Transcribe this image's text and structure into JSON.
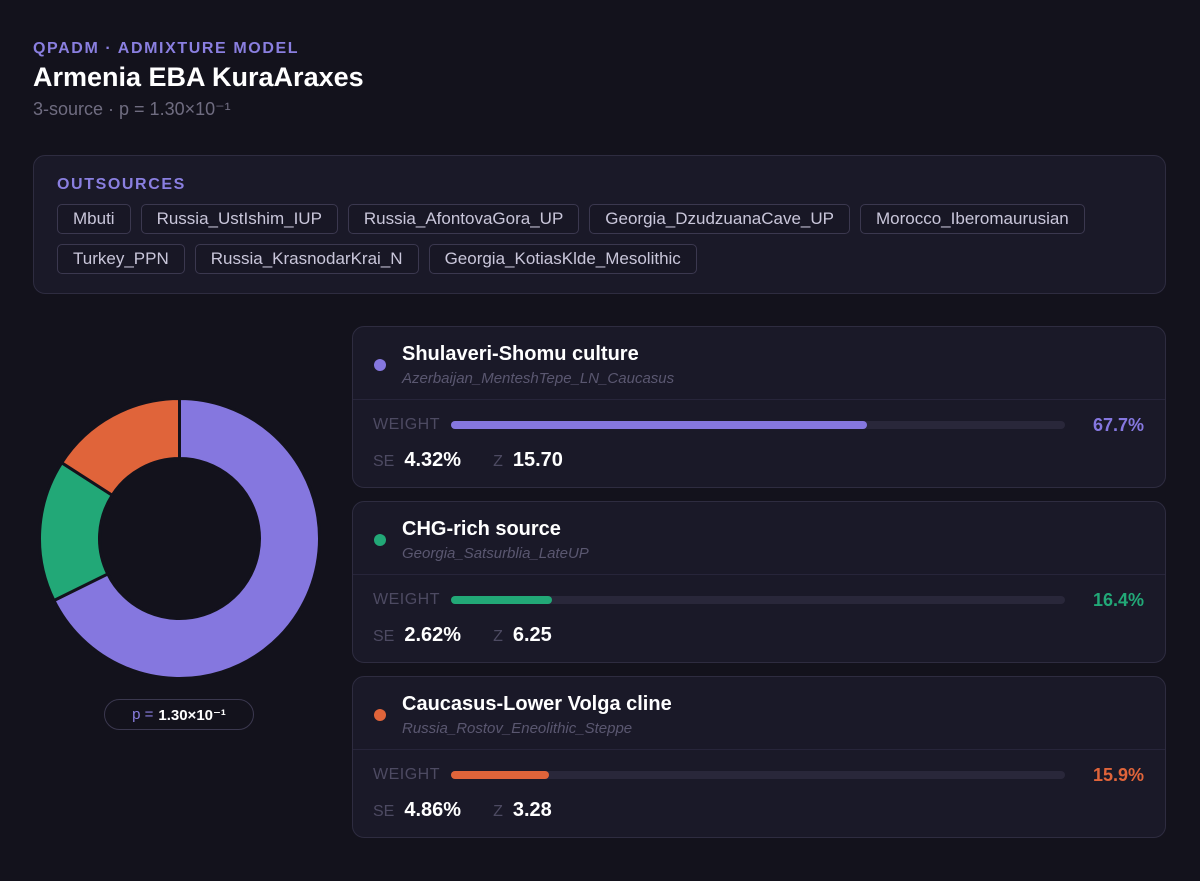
{
  "header": {
    "kicker": "QPADM · ADMIXTURE MODEL",
    "title": "Armenia EBA KuraAraxes",
    "subtitle": "3-source · p = 1.30×10⁻¹"
  },
  "outsources": {
    "label": "OUTSOURCES",
    "items": [
      "Mbuti",
      "Russia_UstIshim_IUP",
      "Russia_AfontovaGora_UP",
      "Georgia_DzudzuanaCave_UP",
      "Morocco_Iberomaurusian",
      "Turkey_PPN",
      "Russia_KrasnodarKrai_N",
      "Georgia_KotiasKlde_Mesolithic"
    ]
  },
  "pvalue_pill": {
    "prefix": "p =",
    "value": "1.30×10⁻¹"
  },
  "labels": {
    "weight": "WEIGHT",
    "se": "SE",
    "z": "Z"
  },
  "sources": [
    {
      "name": "Shulaveri-Shomu culture",
      "population": "Azerbaijan_MenteshTepe_LN_Caucasus",
      "weight": 67.7,
      "weight_text": "67.7%",
      "se": "4.32%",
      "z": "15.70",
      "color": "#8577df"
    },
    {
      "name": "CHG-rich source",
      "population": "Georgia_Satsurblia_LateUP",
      "weight": 16.4,
      "weight_text": "16.4%",
      "se": "2.62%",
      "z": "6.25",
      "color": "#22a877"
    },
    {
      "name": "Caucasus-Lower Volga cline",
      "population": "Russia_Rostov_Eneolithic_Steppe",
      "weight": 15.9,
      "weight_text": "15.9%",
      "se": "4.86%",
      "z": "3.28",
      "color": "#e0643a"
    }
  ]
}
